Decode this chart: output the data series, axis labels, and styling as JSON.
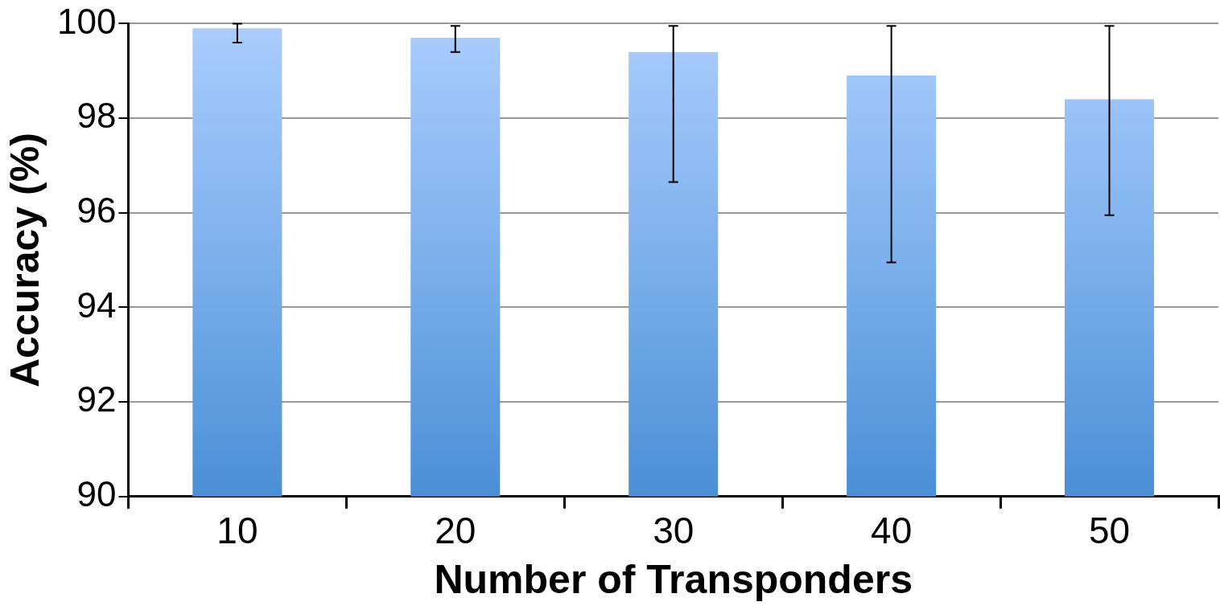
{
  "chart_data": {
    "type": "bar",
    "xlabel": "Number of Transponders",
    "ylabel": "Accuracy (%)",
    "categories": [
      "10",
      "20",
      "30",
      "40",
      "50"
    ],
    "values": [
      99.9,
      99.7,
      99.4,
      98.9,
      98.4
    ],
    "errors": [
      [
        99.6,
        100
      ],
      [
        99.4,
        99.95
      ],
      [
        96.65,
        99.95
      ],
      [
        94.95,
        99.95
      ],
      [
        95.95,
        99.95
      ]
    ],
    "color": "#7cb0ec",
    "ylim": [
      90,
      100
    ],
    "yticks": [
      90,
      92,
      94,
      96,
      98,
      100
    ],
    "grid": "y",
    "legend": false
  }
}
